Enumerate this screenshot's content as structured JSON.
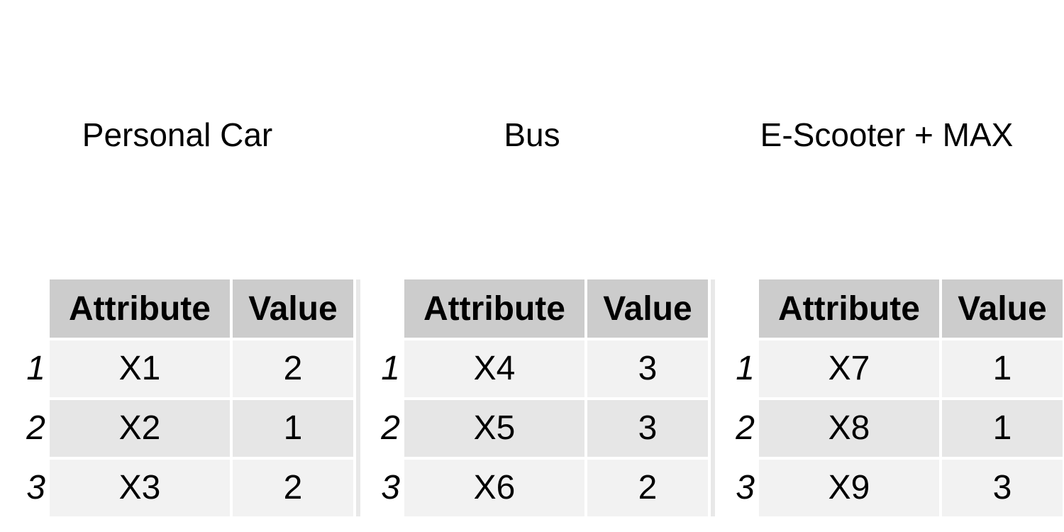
{
  "chart_data": [
    {
      "type": "table",
      "title": "Personal Car",
      "columns": [
        "Attribute",
        "Value"
      ],
      "rows": [
        {
          "index": "1",
          "attribute": "X1",
          "value": "2"
        },
        {
          "index": "2",
          "attribute": "X2",
          "value": "1"
        },
        {
          "index": "3",
          "attribute": "X3",
          "value": "2"
        }
      ]
    },
    {
      "type": "table",
      "title": "Bus",
      "columns": [
        "Attribute",
        "Value"
      ],
      "rows": [
        {
          "index": "1",
          "attribute": "X4",
          "value": "3"
        },
        {
          "index": "2",
          "attribute": "X5",
          "value": "3"
        },
        {
          "index": "3",
          "attribute": "X6",
          "value": "2"
        }
      ]
    },
    {
      "type": "table",
      "title": "E-Scooter + MAX",
      "columns": [
        "Attribute",
        "Value"
      ],
      "rows": [
        {
          "index": "1",
          "attribute": "X7",
          "value": "1"
        },
        {
          "index": "2",
          "attribute": "X8",
          "value": "1"
        },
        {
          "index": "3",
          "attribute": "X9",
          "value": "3"
        }
      ]
    }
  ],
  "colors": {
    "header_bg": "#cccccc",
    "row_odd_bg": "#f2f2f2",
    "row_even_bg": "#e6e6e6",
    "border": "#ffffff"
  }
}
